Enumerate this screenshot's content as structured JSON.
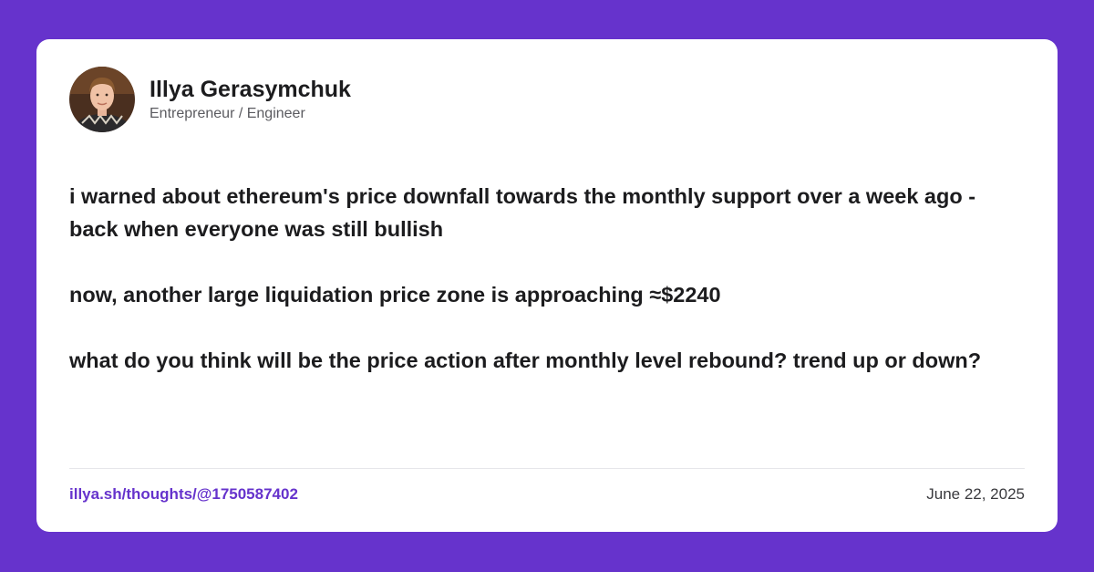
{
  "colors": {
    "background": "#6633cc",
    "card": "#ffffff",
    "link": "#6633cc",
    "text": "#1c1c1e"
  },
  "author": {
    "name": "Illya Gerasymchuk",
    "title": "Entrepreneur / Engineer",
    "avatar_icon": "avatar-photo"
  },
  "post": {
    "paragraphs": [
      "i warned about ethereum's price downfall towards the monthly support over a week ago - back when everyone was still bullish",
      "now, another large liquidation price zone is approaching ≈$2240",
      "what do you think will be the price action after monthly level rebound? trend up or down?"
    ]
  },
  "footer": {
    "link": "illya.sh/thoughts/@1750587402",
    "date": "June 22, 2025"
  }
}
